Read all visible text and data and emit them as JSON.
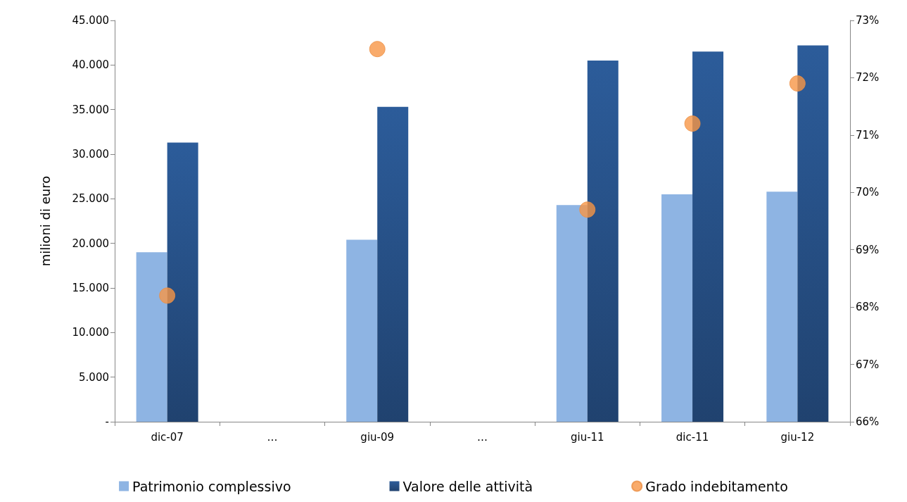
{
  "chart_data": {
    "type": "bar",
    "ylabel": "milioni di euro",
    "categories": [
      "dic-07",
      "…",
      "giu-09",
      "…",
      "giu-11",
      "dic-11",
      "giu-12"
    ],
    "series": [
      {
        "name": "Patrimonio complessivo",
        "color": "#8eb4e3",
        "values": [
          19000,
          null,
          20400,
          null,
          24300,
          25500,
          25800
        ]
      },
      {
        "name": "Valore delle attività",
        "color": "#2c5c9a",
        "values": [
          31300,
          null,
          35300,
          null,
          40500,
          41500,
          42200
        ]
      },
      {
        "name": "Grado indebitamento",
        "type": "scatter",
        "axis": "y2",
        "color": "#f79646",
        "values": [
          68.2,
          null,
          72.5,
          null,
          69.7,
          71.2,
          71.9
        ]
      }
    ],
    "ylim": [
      0,
      45000
    ],
    "yticks": [
      {
        "value": 0,
        "label": "-"
      },
      {
        "value": 5000,
        "label": "5.000"
      },
      {
        "value": 10000,
        "label": "10.000"
      },
      {
        "value": 15000,
        "label": "15.000"
      },
      {
        "value": 20000,
        "label": "20.000"
      },
      {
        "value": 25000,
        "label": "25.000"
      },
      {
        "value": 30000,
        "label": "30.000"
      },
      {
        "value": 35000,
        "label": "35.000"
      },
      {
        "value": 40000,
        "label": "40.000"
      },
      {
        "value": 45000,
        "label": "45.000"
      }
    ],
    "y2lim": [
      66,
      73
    ],
    "y2ticks": [
      {
        "value": 66,
        "label": "66%"
      },
      {
        "value": 67,
        "label": "67%"
      },
      {
        "value": 68,
        "label": "68%"
      },
      {
        "value": 69,
        "label": "69%"
      },
      {
        "value": 70,
        "label": "70%"
      },
      {
        "value": 71,
        "label": "71%"
      },
      {
        "value": 72,
        "label": "72%"
      },
      {
        "value": 73,
        "label": "73%"
      }
    ],
    "grid": false,
    "legend": "bottom",
    "marker": "circle"
  }
}
